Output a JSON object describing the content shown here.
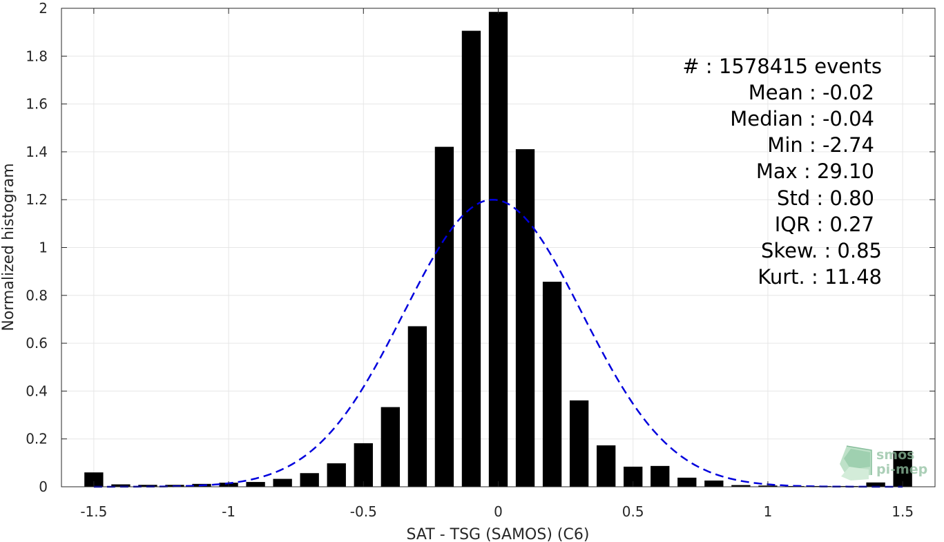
{
  "chart_data": {
    "type": "bar",
    "xlabel": "SAT - TSG (SAMOS) (C6)",
    "ylabel": "Normalized histogram",
    "xlim": [
      -1.62,
      1.62
    ],
    "ylim": [
      0,
      2
    ],
    "xticks": [
      -1.5,
      -1,
      -0.5,
      0,
      0.5,
      1,
      1.5
    ],
    "xtick_labels": [
      "-1.5",
      "-1",
      "-0.5",
      "0",
      "0.5",
      "1",
      "1.5"
    ],
    "yticks": [
      0,
      0.2,
      0.4,
      0.6,
      0.8,
      1,
      1.2,
      1.4,
      1.6,
      1.8,
      2
    ],
    "ytick_labels": [
      "0",
      "0.2",
      "0.4",
      "0.6",
      "0.8",
      "1",
      "1.2",
      "1.4",
      "1.6",
      "1.8",
      "2"
    ],
    "grid": true,
    "bar_color": "#000000",
    "bin_width": 0.1,
    "x": [
      -1.5,
      -1.4,
      -1.3,
      -1.2,
      -1.1,
      -1.0,
      -0.9,
      -0.8,
      -0.7,
      -0.6,
      -0.5,
      -0.4,
      -0.3,
      -0.2,
      -0.1,
      0.0,
      0.1,
      0.2,
      0.3,
      0.4,
      0.5,
      0.6,
      0.7,
      0.8,
      0.9,
      1.0,
      1.1,
      1.2,
      1.3,
      1.4,
      1.5
    ],
    "values": [
      0.06,
      0.01,
      0.008,
      0.008,
      0.012,
      0.017,
      0.02,
      0.033,
      0.057,
      0.098,
      0.182,
      0.333,
      0.671,
      1.421,
      1.906,
      1.985,
      1.411,
      0.857,
      0.361,
      0.173,
      0.084,
      0.087,
      0.038,
      0.026,
      0.007,
      0.005,
      0.003,
      0.003,
      0.003,
      0.018,
      0.15
    ],
    "fit": {
      "type": "gaussian",
      "color": "#0000dd",
      "style": "dashed",
      "mean": -0.02,
      "std": 0.33,
      "peak": 1.2
    },
    "stats": [
      "#  : 1578415 events",
      "Mean : -0.02",
      "Median : -0.04",
      "Min : -2.74",
      "Max : 29.10",
      "Std : 0.80",
      "IQR : 0.27",
      "Skew. : 0.85",
      "Kurt. : 11.48"
    ]
  },
  "logo": {
    "line1": "smos",
    "line2": "pi-mep",
    "color": "#6fb58a"
  }
}
